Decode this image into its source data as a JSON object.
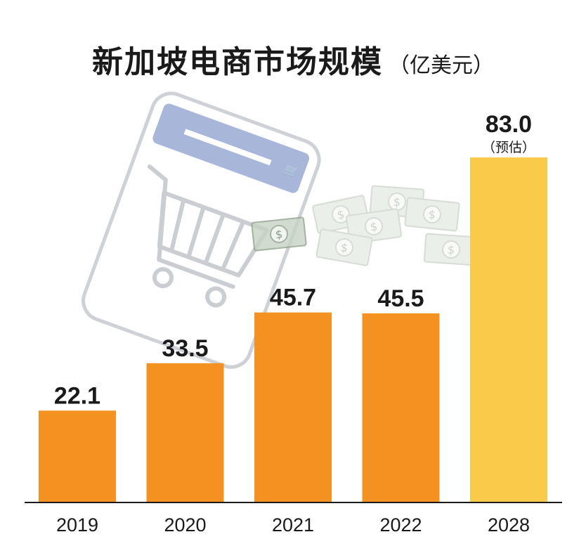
{
  "title": "新加坡电商市场规模",
  "title_unit": "（亿美元）",
  "colors": {
    "actual": "#F39121",
    "forecast": "#FACB4B",
    "axis": "#1a1a1a"
  },
  "chart_data": {
    "type": "bar",
    "title": "新加坡电商市场规模（亿美元）",
    "categories": [
      "2019",
      "2020",
      "2021",
      "2022",
      "2028"
    ],
    "values": [
      22.1,
      33.5,
      45.7,
      45.5,
      83.0
    ],
    "value_labels": [
      "22.1",
      "33.5",
      "45.7",
      "45.5",
      "83.0"
    ],
    "annotations": [
      {
        "category": "2028",
        "text": "（预估）"
      }
    ],
    "forecast_categories": [
      "2028"
    ],
    "ylim": [
      0,
      83
    ],
    "grid": false,
    "legend": "none",
    "xlabel": "",
    "ylabel": ""
  }
}
